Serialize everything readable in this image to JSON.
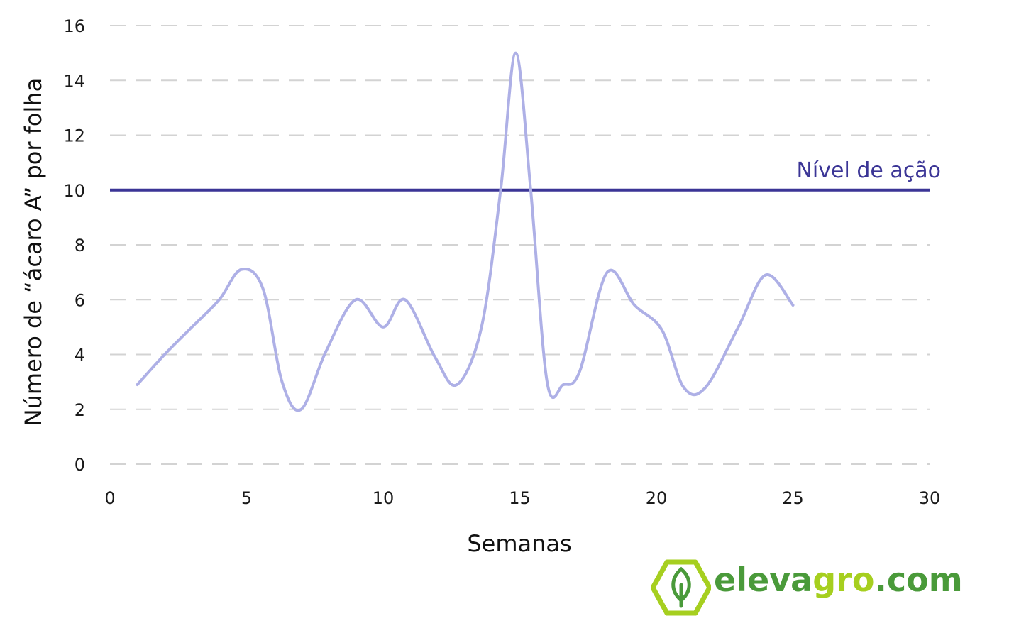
{
  "chart_data": {
    "type": "line",
    "xlabel": "Semanas",
    "ylabel": "Número de “ácaro A” por folha",
    "xlim": [
      0,
      30
    ],
    "ylim": [
      0,
      16
    ],
    "x_ticks": [
      0,
      5,
      10,
      15,
      20,
      25,
      30
    ],
    "y_ticks": [
      0,
      2,
      4,
      6,
      8,
      10,
      12,
      14,
      16
    ],
    "grid": "horizontal dashed",
    "series": [
      {
        "color": "#aeb0e6",
        "x": [
          1,
          2,
          3,
          4,
          4.8,
          5.6,
          6.3,
          7,
          7.9,
          9,
          10,
          10.8,
          11.9,
          12.7,
          13.6,
          14.3,
          14.85,
          15.4,
          16,
          16.6,
          17.2,
          18.2,
          19.2,
          20.2,
          21,
          21.8,
          23,
          24,
          25
        ],
        "values": [
          2.9,
          4.0,
          5.0,
          6.0,
          7.1,
          6.4,
          3.0,
          2.0,
          4.1,
          6.0,
          5.0,
          6.0,
          3.9,
          2.9,
          5.0,
          10.0,
          15.0,
          10.0,
          3.0,
          2.9,
          3.4,
          7.0,
          5.8,
          4.9,
          2.8,
          2.8,
          5.0,
          6.9,
          5.8
        ]
      }
    ],
    "reference_line": {
      "label": "Nível de ação",
      "y": 10,
      "color": "#3b3596"
    },
    "colors": {
      "grid": "#d3d3d3",
      "series": "#aeb0e6",
      "reference": "#3b3596"
    }
  },
  "logo": {
    "text_part1": "eleva",
    "text_part2": "gro",
    "text_part3": ".com",
    "colors": {
      "dark_green": "#4a9a3a",
      "light_green": "#a6cf1f"
    },
    "icon": "leaf-hexagon-icon"
  }
}
